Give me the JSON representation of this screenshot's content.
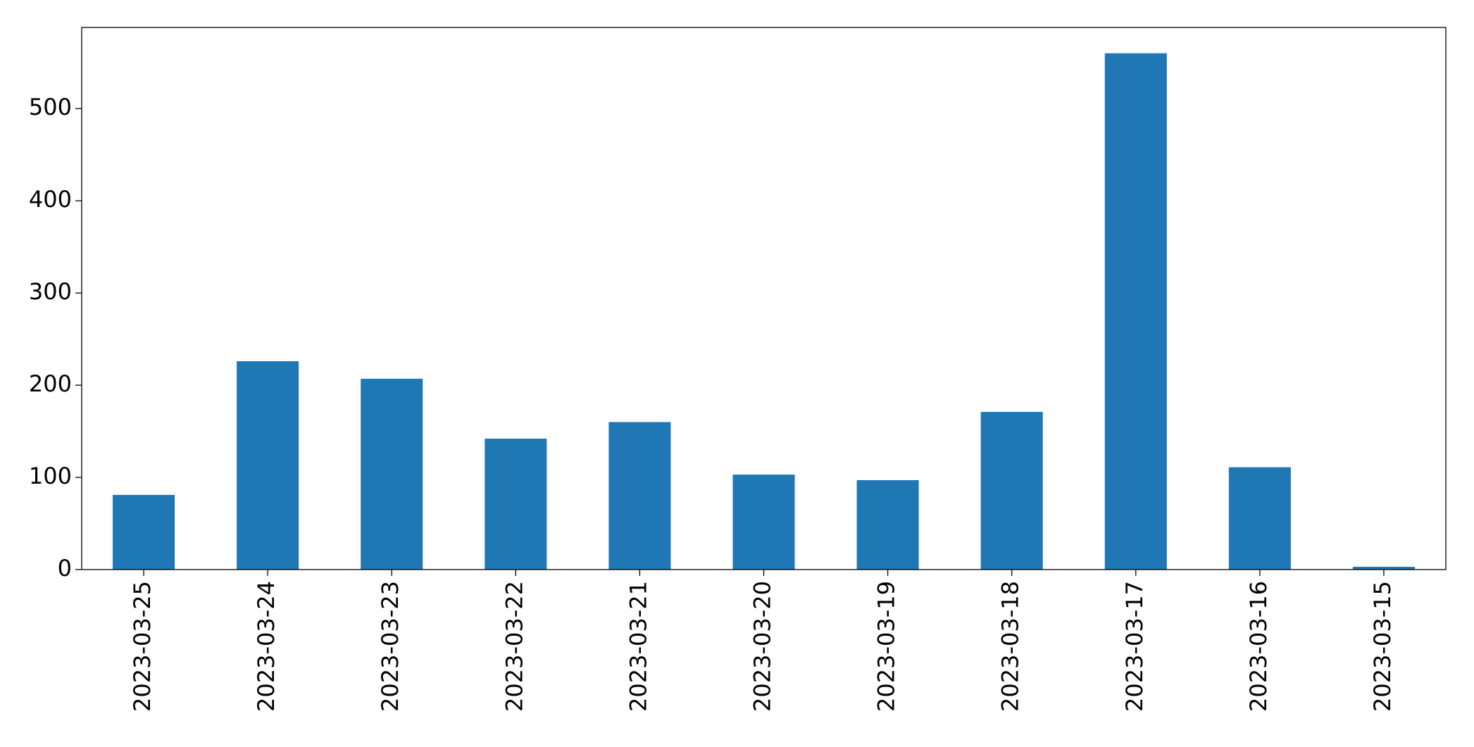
{
  "chart_data": {
    "type": "bar",
    "categories": [
      "2023-03-25",
      "2023-03-24",
      "2023-03-23",
      "2023-03-22",
      "2023-03-21",
      "2023-03-20",
      "2023-03-19",
      "2023-03-18",
      "2023-03-17",
      "2023-03-16",
      "2023-03-15"
    ],
    "values": [
      81,
      226,
      207,
      142,
      160,
      103,
      97,
      171,
      560,
      111,
      3
    ],
    "color": "#1f77b4",
    "ylim": [
      0,
      588
    ],
    "yticks": [
      0,
      100,
      200,
      300,
      400,
      500
    ],
    "grid": false
  }
}
